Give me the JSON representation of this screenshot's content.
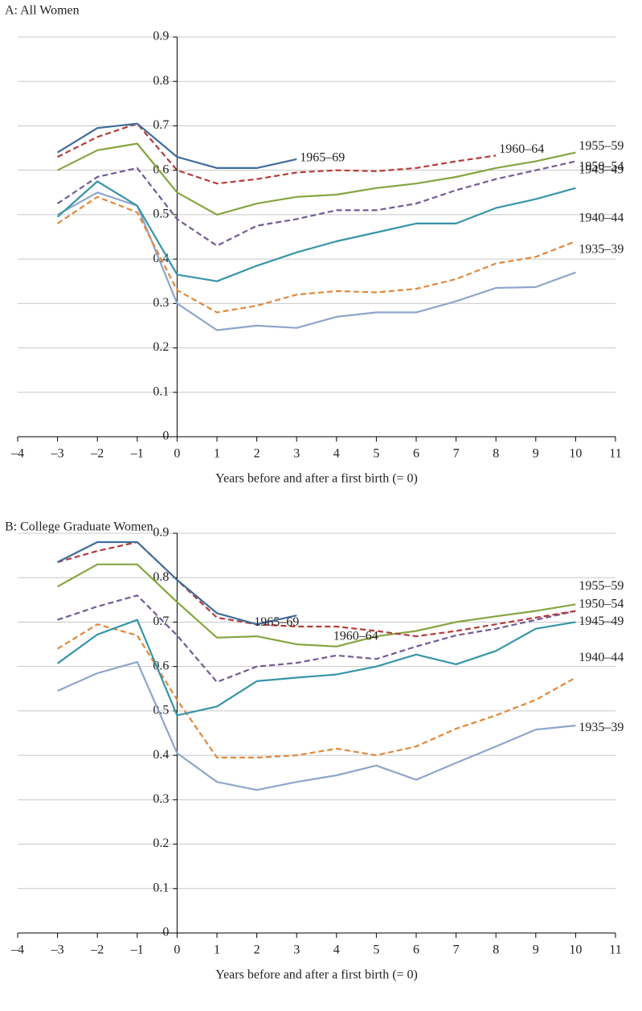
{
  "chart_data": [
    {
      "type": "line",
      "title": "A: All Women",
      "xlabel": "Years before and after a first birth (= 0)",
      "x": [
        -3,
        -2,
        -1,
        0,
        1,
        2,
        3,
        4,
        5,
        6,
        7,
        8,
        9,
        10
      ],
      "xlim": [
        -4,
        11
      ],
      "xticks": [
        {
          "value": -4,
          "label": "–4"
        },
        {
          "value": -3,
          "label": "–3"
        },
        {
          "value": -2,
          "label": "–2"
        },
        {
          "value": -1,
          "label": "–1"
        },
        0,
        1,
        2,
        3,
        4,
        5,
        6,
        7,
        8,
        9,
        10,
        11
      ],
      "ylim": [
        0,
        0.9
      ],
      "yticks": [
        0,
        0.1,
        0.2,
        0.3,
        0.4,
        0.5,
        0.6,
        0.7,
        0.8,
        0.9
      ],
      "grid": true,
      "series": [
        {
          "name": "1935–39",
          "color": "#8ea6cb",
          "dashed": false,
          "values": [
            0.5,
            0.55,
            0.52,
            0.3,
            0.24,
            0.25,
            0.245,
            0.27,
            0.28,
            0.28,
            0.305,
            0.335,
            0.337,
            0.37
          ]
        },
        {
          "name": "1940–44",
          "color": "#e0883b",
          "dashed": true,
          "values": [
            0.48,
            0.54,
            0.505,
            0.33,
            0.28,
            0.295,
            0.32,
            0.328,
            0.325,
            0.333,
            0.355,
            0.39,
            0.405,
            0.44
          ]
        },
        {
          "name": "1945–49",
          "color": "#3795a8",
          "dashed": false,
          "values": [
            0.495,
            0.575,
            0.52,
            0.365,
            0.35,
            0.385,
            0.415,
            0.44,
            0.46,
            0.48,
            0.48,
            0.515,
            0.535,
            0.56
          ]
        },
        {
          "name": "1950–54",
          "color": "#735a96",
          "dashed": true,
          "values": [
            0.525,
            0.585,
            0.605,
            0.49,
            0.43,
            0.475,
            0.49,
            0.51,
            0.51,
            0.525,
            0.555,
            0.58,
            0.6,
            0.62
          ]
        },
        {
          "name": "1955–59",
          "color": "#86a540",
          "dashed": false,
          "values": [
            0.6,
            0.645,
            0.66,
            0.55,
            0.5,
            0.525,
            0.54,
            0.545,
            0.56,
            0.57,
            0.585,
            0.605,
            0.62,
            0.64
          ]
        },
        {
          "name": "1960–64",
          "color": "#b53b3a",
          "dashed": true,
          "values": [
            0.63,
            0.675,
            0.705,
            0.6,
            0.57,
            0.58,
            0.595,
            0.6,
            0.598,
            0.605,
            0.62,
            0.633,
            null,
            null
          ]
        },
        {
          "name": "1965–69",
          "color": "#3f6c9c",
          "dashed": false,
          "values": [
            0.64,
            0.695,
            0.705,
            0.63,
            0.605,
            0.605,
            0.625,
            null,
            null,
            null,
            null,
            null,
            null,
            null
          ]
        }
      ]
    },
    {
      "type": "line",
      "title": "B: College Graduate Women",
      "xlabel": "Years before and after a first birth (= 0)",
      "x": [
        -3,
        -2,
        -1,
        0,
        1,
        2,
        3,
        4,
        5,
        6,
        7,
        8,
        9,
        10
      ],
      "xlim": [
        -4,
        11
      ],
      "xticks": [
        {
          "value": -4,
          "label": "–4"
        },
        {
          "value": -3,
          "label": "–3"
        },
        {
          "value": -2,
          "label": "–2"
        },
        {
          "value": -1,
          "label": "–1"
        },
        0,
        1,
        2,
        3,
        4,
        5,
        6,
        7,
        8,
        9,
        10,
        11
      ],
      "ylim": [
        0,
        0.9
      ],
      "yticks": [
        0,
        0.1,
        0.2,
        0.3,
        0.4,
        0.5,
        0.6,
        0.7,
        0.8,
        0.9
      ],
      "grid": true,
      "series": [
        {
          "name": "1935–39",
          "color": "#8ea6cb",
          "dashed": false,
          "values": [
            0.545,
            0.585,
            0.61,
            0.405,
            0.34,
            0.322,
            0.34,
            0.355,
            0.377,
            0.345,
            0.383,
            0.42,
            0.458,
            0.467
          ]
        },
        {
          "name": "1940–44",
          "color": "#e0883b",
          "dashed": true,
          "values": [
            0.64,
            0.695,
            0.67,
            0.525,
            0.395,
            0.395,
            0.4,
            0.415,
            0.4,
            0.42,
            0.46,
            0.49,
            0.525,
            0.575
          ]
        },
        {
          "name": "1945–49",
          "color": "#3795a8",
          "dashed": false,
          "values": [
            0.607,
            0.672,
            0.705,
            0.49,
            0.51,
            0.567,
            0.575,
            0.582,
            0.6,
            0.627,
            0.605,
            0.635,
            0.685,
            0.7
          ]
        },
        {
          "name": "1950–54",
          "color": "#735a96",
          "dashed": true,
          "values": [
            0.705,
            0.735,
            0.76,
            0.67,
            0.565,
            0.6,
            0.608,
            0.625,
            0.617,
            0.645,
            0.67,
            0.685,
            0.705,
            0.725
          ]
        },
        {
          "name": "1955–59",
          "color": "#86a540",
          "dashed": false,
          "values": [
            0.78,
            0.83,
            0.83,
            0.745,
            0.665,
            0.668,
            0.65,
            0.645,
            0.668,
            0.68,
            0.7,
            0.713,
            0.725,
            0.74
          ]
        },
        {
          "name": "1960–64",
          "color": "#b53b3a",
          "dashed": true,
          "values": [
            0.835,
            0.86,
            0.88,
            0.795,
            0.71,
            0.695,
            0.69,
            0.69,
            0.68,
            0.668,
            0.68,
            0.695,
            0.71,
            0.725
          ]
        },
        {
          "name": "1965–69",
          "color": "#3f6c9c",
          "dashed": false,
          "values": [
            0.835,
            0.88,
            0.88,
            0.795,
            0.72,
            0.695,
            0.715,
            null,
            null,
            null,
            null,
            null,
            null,
            null
          ]
        }
      ]
    }
  ]
}
